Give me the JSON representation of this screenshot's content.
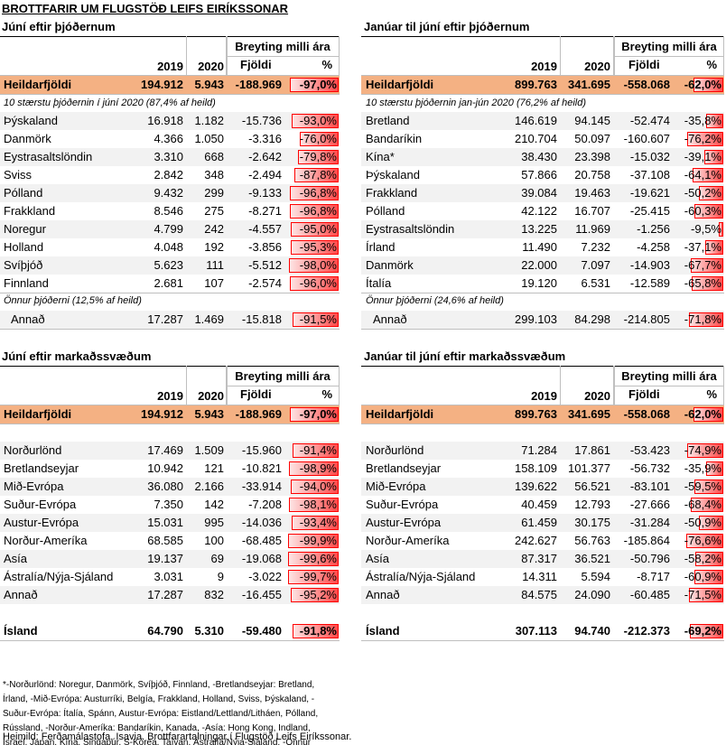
{
  "title": "BROTTFARIR UM FLUGSTÖÐ LEIFS EIRÍKSSONAR",
  "columns": {
    "change": "Breyting milli ára",
    "years": [
      "2019",
      "2020"
    ],
    "diff": "Fjöldi",
    "pct": "%"
  },
  "panels": [
    {
      "title": "Júní eftir þjóðernum",
      "total": [
        "Heildarfjöldi",
        "194.912",
        "5.943",
        "-188.969",
        {
          "value": -97.0,
          "label": "-97,0%"
        }
      ],
      "top_note": "10 stærstu þjóðernin í júní 2020 (87,4% af heild)",
      "rows": [
        [
          "Þýskaland",
          "16.918",
          "1.182",
          "-15.736",
          {
            "value": -93.0,
            "label": "-93,0%"
          }
        ],
        [
          "Danmörk",
          "4.366",
          "1.050",
          "-3.316",
          {
            "value": -76.0,
            "label": "-76,0%"
          }
        ],
        [
          "Eystrasaltslöndin",
          "3.310",
          "668",
          "-2.642",
          {
            "value": -79.8,
            "label": "-79,8%"
          }
        ],
        [
          "Sviss",
          "2.842",
          "348",
          "-2.494",
          {
            "value": -87.8,
            "label": "-87,8%"
          }
        ],
        [
          "Pólland",
          "9.432",
          "299",
          "-9.133",
          {
            "value": -96.8,
            "label": "-96,8%"
          }
        ],
        [
          "Frakkland",
          "8.546",
          "275",
          "-8.271",
          {
            "value": -96.8,
            "label": "-96,8%"
          }
        ],
        [
          "Noregur",
          "4.799",
          "242",
          "-4.557",
          {
            "value": -95.0,
            "label": "-95,0%"
          }
        ],
        [
          "Holland",
          "4.048",
          "192",
          "-3.856",
          {
            "value": -95.3,
            "label": "-95,3%"
          }
        ],
        [
          "Svíþjóð",
          "5.623",
          "111",
          "-5.512",
          {
            "value": -98.0,
            "label": "-98,0%"
          }
        ],
        [
          "Finnland",
          "2.681",
          "107",
          "-2.574",
          {
            "value": -96.0,
            "label": "-96,0%"
          }
        ]
      ],
      "other_note": "Önnur þjóðerni (12,5% af heild)",
      "other": [
        "Annað",
        "17.287",
        "1.469",
        "-15.818",
        {
          "value": -91.5,
          "label": "-91,5%"
        }
      ]
    },
    {
      "title": "Janúar til júní eftir þjóðernum",
      "total": [
        "Heildarfjöldi",
        "899.763",
        "341.695",
        "-558.068",
        {
          "value": -62.0,
          "label": "-62,0%"
        }
      ],
      "top_note": "10 stærstu þjóðernin jan-jún 2020 (76,2% af heild)",
      "rows": [
        [
          "Bretland",
          "146.619",
          "94.145",
          "-52.474",
          {
            "value": -35.8,
            "label": "-35,8%"
          }
        ],
        [
          "Bandaríkin",
          "210.704",
          "50.097",
          "-160.607",
          {
            "value": -76.2,
            "label": "-76,2%"
          }
        ],
        [
          "Kína*",
          "38.430",
          "23.398",
          "-15.032",
          {
            "value": -39.1,
            "label": "-39,1%"
          }
        ],
        [
          "Þýskaland",
          "57.866",
          "20.758",
          "-37.108",
          {
            "value": -64.1,
            "label": "-64,1%"
          }
        ],
        [
          "Frakkland",
          "39.084",
          "19.463",
          "-19.621",
          {
            "value": -50.2,
            "label": "-50,2%"
          }
        ],
        [
          "Pólland",
          "42.122",
          "16.707",
          "-25.415",
          {
            "value": -60.3,
            "label": "-60,3%"
          }
        ],
        [
          "Eystrasaltslöndin",
          "13.225",
          "11.969",
          "-1.256",
          {
            "value": -9.5,
            "label": "-9,5%"
          }
        ],
        [
          "Írland",
          "11.490",
          "7.232",
          "-4.258",
          {
            "value": -37.1,
            "label": "-37,1%"
          }
        ],
        [
          "Danmörk",
          "22.000",
          "7.097",
          "-14.903",
          {
            "value": -67.7,
            "label": "-67,7%"
          }
        ],
        [
          "Ítalía",
          "19.120",
          "6.531",
          "-12.589",
          {
            "value": -65.8,
            "label": "-65,8%"
          }
        ]
      ],
      "other_note": "Önnur þjóðerni (24,6% af heild)",
      "other": [
        "Annað",
        "299.103",
        "84.298",
        "-214.805",
        {
          "value": -71.8,
          "label": "-71,8%"
        }
      ]
    },
    {
      "title": "Júní eftir markaðssvæðum",
      "total": [
        "Heildarfjöldi",
        "194.912",
        "5.943",
        "-188.969",
        {
          "value": -97.0,
          "label": "-97,0%"
        }
      ],
      "rows": [
        [
          "Norðurlönd",
          "17.469",
          "1.509",
          "-15.960",
          {
            "value": -91.4,
            "label": "-91,4%"
          }
        ],
        [
          "Bretlandseyjar",
          "10.942",
          "121",
          "-10.821",
          {
            "value": -98.9,
            "label": "-98,9%"
          }
        ],
        [
          "Mið-Evrópa",
          "36.080",
          "2.166",
          "-33.914",
          {
            "value": -94.0,
            "label": "-94,0%"
          }
        ],
        [
          "Suður-Evrópa",
          "7.350",
          "142",
          "-7.208",
          {
            "value": -98.1,
            "label": "-98,1%"
          }
        ],
        [
          "Austur-Evrópa",
          "15.031",
          "995",
          "-14.036",
          {
            "value": -93.4,
            "label": "-93,4%"
          }
        ],
        [
          "Norður-Ameríka",
          "68.585",
          "100",
          "-68.485",
          {
            "value": -99.9,
            "label": "-99,9%"
          }
        ],
        [
          "Asía",
          "19.137",
          "69",
          "-19.068",
          {
            "value": -99.6,
            "label": "-99,6%"
          }
        ],
        [
          "Ástralía/Nýja-Sjáland",
          "3.031",
          "9",
          "-3.022",
          {
            "value": -99.7,
            "label": "-99,7%"
          }
        ],
        [
          "Annað",
          "17.287",
          "832",
          "-16.455",
          {
            "value": -95.2,
            "label": "-95,2%"
          }
        ]
      ],
      "iceland": [
        "Ísland",
        "64.790",
        "5.310",
        "-59.480",
        {
          "value": -91.8,
          "label": "-91,8%"
        }
      ]
    },
    {
      "title": "Janúar til júní eftir markaðssvæðum",
      "total": [
        "Heildarfjöldi",
        "899.763",
        "341.695",
        "-558.068",
        {
          "value": -62.0,
          "label": "-62,0%"
        }
      ],
      "rows": [
        [
          "Norðurlönd",
          "71.284",
          "17.861",
          "-53.423",
          {
            "value": -74.9,
            "label": "-74,9%"
          }
        ],
        [
          "Bretlandseyjar",
          "158.109",
          "101.377",
          "-56.732",
          {
            "value": -35.9,
            "label": "-35,9%"
          }
        ],
        [
          "Mið-Evrópa",
          "139.622",
          "56.521",
          "-83.101",
          {
            "value": -59.5,
            "label": "-59,5%"
          }
        ],
        [
          "Suður-Evrópa",
          "40.459",
          "12.793",
          "-27.666",
          {
            "value": -68.4,
            "label": "-68,4%"
          }
        ],
        [
          "Austur-Evrópa",
          "61.459",
          "30.175",
          "-31.284",
          {
            "value": -50.9,
            "label": "-50,9%"
          }
        ],
        [
          "Norður-Ameríka",
          "242.627",
          "56.763",
          "-185.864",
          {
            "value": -76.6,
            "label": "-76,6%"
          }
        ],
        [
          "Asía",
          "87.317",
          "36.521",
          "-50.796",
          {
            "value": -58.2,
            "label": "-58,2%"
          }
        ],
        [
          "Ástralía/Nýja-Sjáland",
          "14.311",
          "5.594",
          "-8.717",
          {
            "value": -60.9,
            "label": "-60,9%"
          }
        ],
        [
          "Annað",
          "84.575",
          "24.090",
          "-60.485",
          {
            "value": -71.5,
            "label": "-71,5%"
          }
        ]
      ],
      "iceland": [
        "Ísland",
        "307.113",
        "94.740",
        "-212.373",
        {
          "value": -69.2,
          "label": "-69,2%"
        }
      ]
    }
  ],
  "footnote": [
    "*-Norðurlönd: Noregur, Danmörk, Svíþjóð, Finnland, -Bretlandseyjar: Bretland,",
    "Írland, -Mið-Evrópa: Austurríki, Belgía, Frakkland, Holland, Sviss, Þýskaland, -",
    "Suður-Evrópa: Ítalía, Spánn, Austur-Evrópa: Eistland/Lettland/Litháen, Pólland,",
    "Rússland, -Norður-Ameríka: Bandaríkin, Kanada, -Asía: Hong Kong, Indland,",
    "Ísrael, Japan, Kína, Singapúr, S-Kórea, Taívan, Ástralía/Nýja-Sjáland, -Önnur"
  ],
  "source": "Heimild: Ferðamálastofa, Isavia. Brottfarartalningar í Flugstöð Leifs Eiríkssonar."
}
